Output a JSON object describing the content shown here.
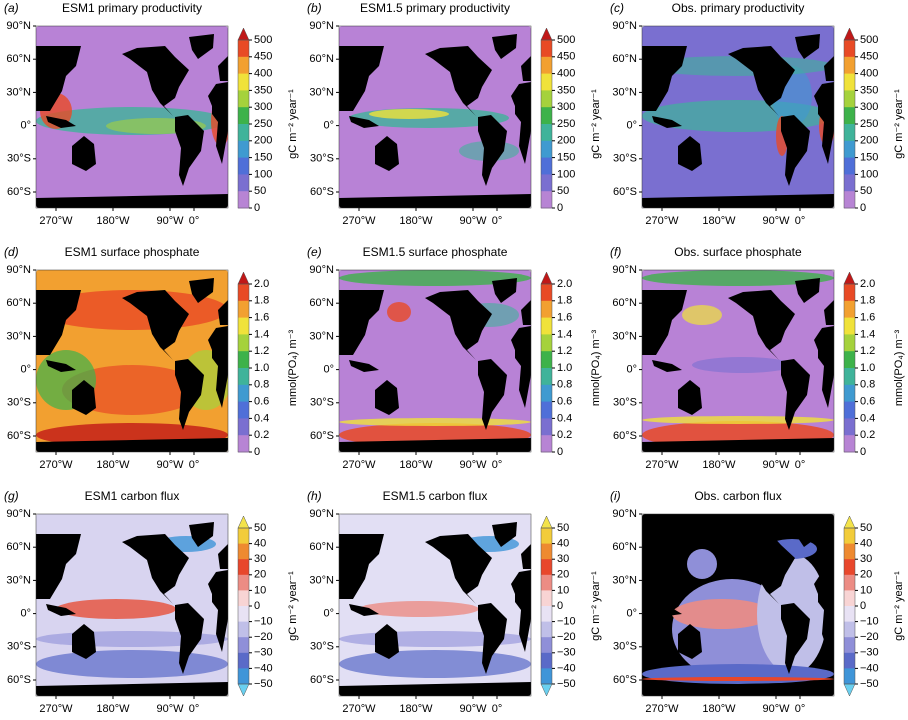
{
  "panels": [
    {
      "label": "(a)",
      "title": "ESM1 primary productivity",
      "lat_ticks": [
        "90°N",
        "60°N",
        "30°N",
        "0°",
        "30°S",
        "60°S"
      ],
      "lon_ticks": [
        "270°W",
        "180°W",
        "90°W",
        "0°"
      ],
      "colorbar": {
        "ticks": [
          "500",
          "450",
          "400",
          "350",
          "300",
          "250",
          "200",
          "150",
          "100",
          "50",
          "0"
        ],
        "unit": "gC m⁻² year⁻¹"
      }
    },
    {
      "label": "(b)",
      "title": "ESM1.5 primary productivity",
      "lat_ticks": [
        "90°N",
        "60°N",
        "30°N",
        "0°",
        "30°S",
        "60°S"
      ],
      "lon_ticks": [
        "270°W",
        "180°W",
        "90°W",
        "0°"
      ],
      "colorbar": {
        "ticks": [
          "500",
          "450",
          "400",
          "350",
          "300",
          "250",
          "200",
          "150",
          "100",
          "50",
          "0"
        ],
        "unit": "gC m⁻² year⁻¹"
      }
    },
    {
      "label": "(c)",
      "title": "Obs. primary productivity",
      "lat_ticks": [
        "90°N",
        "60°N",
        "30°N",
        "0°",
        "30°S",
        "60°S"
      ],
      "lon_ticks": [
        "270°W",
        "180°W",
        "90°W",
        "0°"
      ],
      "colorbar": {
        "ticks": [
          "500",
          "450",
          "400",
          "350",
          "300",
          "250",
          "200",
          "150",
          "100",
          "50",
          "0"
        ],
        "unit": "gC m⁻² year⁻¹"
      }
    },
    {
      "label": "(d)",
      "title": "ESM1 surface phosphate",
      "lat_ticks": [
        "90°N",
        "60°N",
        "30°N",
        "0°",
        "30°S",
        "60°S"
      ],
      "lon_ticks": [
        "270°W",
        "180°W",
        "90°W",
        "0°"
      ],
      "colorbar": {
        "ticks": [
          "2.0",
          "1.8",
          "1.6",
          "1.4",
          "1.2",
          "1.0",
          "0.8",
          "0.6",
          "0.4",
          "0.2",
          "0"
        ],
        "unit": "mmol(PO₄) m⁻³"
      }
    },
    {
      "label": "(e)",
      "title": "ESM1.5 surface phosphate",
      "lat_ticks": [
        "90°N",
        "60°N",
        "30°N",
        "0°",
        "30°S",
        "60°S"
      ],
      "lon_ticks": [
        "270°W",
        "180°W",
        "90°W",
        "0°"
      ],
      "colorbar": {
        "ticks": [
          "2.0",
          "1.8",
          "1.6",
          "1.4",
          "1.2",
          "1.0",
          "0.8",
          "0.6",
          "0.4",
          "0.2",
          "0"
        ],
        "unit": "mmol(PO₄) m⁻³"
      }
    },
    {
      "label": "(f)",
      "title": "Obs. surface phosphate",
      "lat_ticks": [
        "90°N",
        "60°N",
        "30°N",
        "0°",
        "30°S",
        "60°S"
      ],
      "lon_ticks": [
        "270°W",
        "180°W",
        "90°W",
        "0°"
      ],
      "colorbar": {
        "ticks": [
          "2.0",
          "1.8",
          "1.6",
          "1.4",
          "1.2",
          "1.0",
          "0.8",
          "0.6",
          "0.4",
          "0.2",
          "0"
        ],
        "unit": "mmol(PO₄) m⁻³"
      }
    },
    {
      "label": "(g)",
      "title": "ESM1 carbon flux",
      "lat_ticks": [
        "90°N",
        "60°N",
        "30°N",
        "0°",
        "30°S",
        "60°S"
      ],
      "lon_ticks": [
        "270°W",
        "180°W",
        "90°W",
        "0°"
      ],
      "colorbar": {
        "ticks": [
          "50",
          "40",
          "30",
          "20",
          "10",
          "0",
          "−10",
          "−20",
          "−30",
          "−40",
          "−50"
        ],
        "unit": "gC m⁻² year⁻¹"
      }
    },
    {
      "label": "(h)",
      "title": "ESM1.5 carbon flux",
      "lat_ticks": [
        "90°N",
        "60°N",
        "30°N",
        "0°",
        "30°S",
        "60°S"
      ],
      "lon_ticks": [
        "270°W",
        "180°W",
        "90°W",
        "0°"
      ],
      "colorbar": {
        "ticks": [
          "50",
          "40",
          "30",
          "20",
          "10",
          "0",
          "−10",
          "−20",
          "−30",
          "−40",
          "−50"
        ],
        "unit": "gC m⁻² year⁻¹"
      }
    },
    {
      "label": "(i)",
      "title": "Obs. carbon flux",
      "lat_ticks": [
        "90°N",
        "60°N",
        "30°N",
        "0°",
        "30°S",
        "60°S"
      ],
      "lon_ticks": [
        "270°W",
        "180°W",
        "90°W",
        "0°"
      ],
      "colorbar": {
        "ticks": [
          "50",
          "40",
          "30",
          "20",
          "10",
          "0",
          "−10",
          "−20",
          "−30",
          "−40",
          "−50"
        ],
        "unit": "gC m⁻² year⁻¹"
      }
    }
  ]
}
